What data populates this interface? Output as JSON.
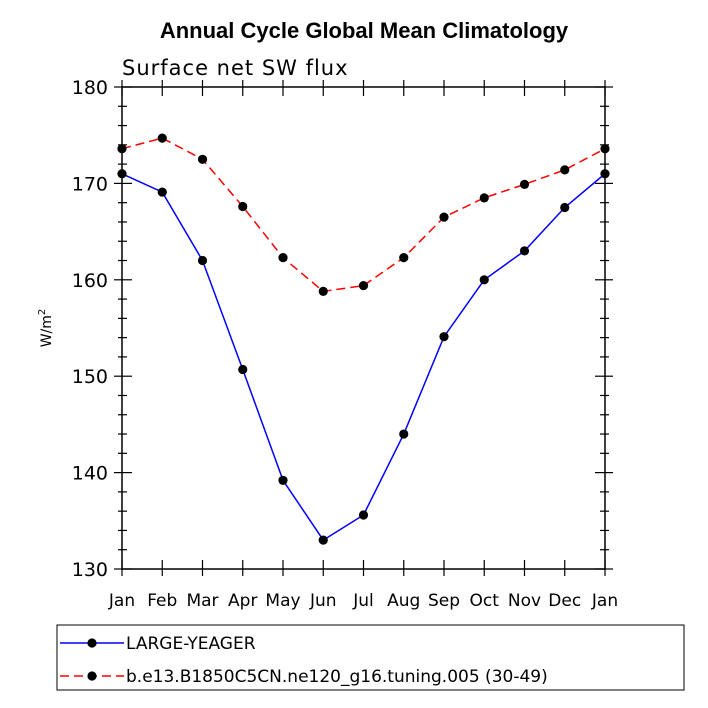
{
  "chart_data": {
    "type": "line",
    "title": "Annual Cycle Global Mean Climatology",
    "subtitle": "Surface net SW flux",
    "ylabel": "W/m",
    "ylabel_superscript": "2",
    "xlabel": "",
    "ylim": [
      130,
      180
    ],
    "yticks": [
      130,
      140,
      150,
      160,
      170,
      180
    ],
    "categories": [
      "Jan",
      "Feb",
      "Mar",
      "Apr",
      "May",
      "Jun",
      "Jul",
      "Aug",
      "Sep",
      "Oct",
      "Nov",
      "Dec",
      "Jan"
    ],
    "grid": false,
    "legend_position": "bottom",
    "series": [
      {
        "name": "LARGE-YEAGER",
        "color": "#0000ff",
        "dash": "solid",
        "marker": "filled-circle",
        "values": [
          171.0,
          169.1,
          162.0,
          150.7,
          139.2,
          133.0,
          135.6,
          144.0,
          154.1,
          160.0,
          163.0,
          167.5,
          171.0
        ]
      },
      {
        "name": "b.e13.B1850C5CN.ne120_g16.tuning.005 (30-49)",
        "color": "#ff0000",
        "dash": "dashed",
        "marker": "filled-circle",
        "values": [
          173.6,
          174.7,
          172.5,
          167.6,
          162.3,
          158.8,
          159.4,
          162.3,
          166.5,
          168.5,
          169.9,
          171.4,
          173.6
        ]
      }
    ]
  }
}
